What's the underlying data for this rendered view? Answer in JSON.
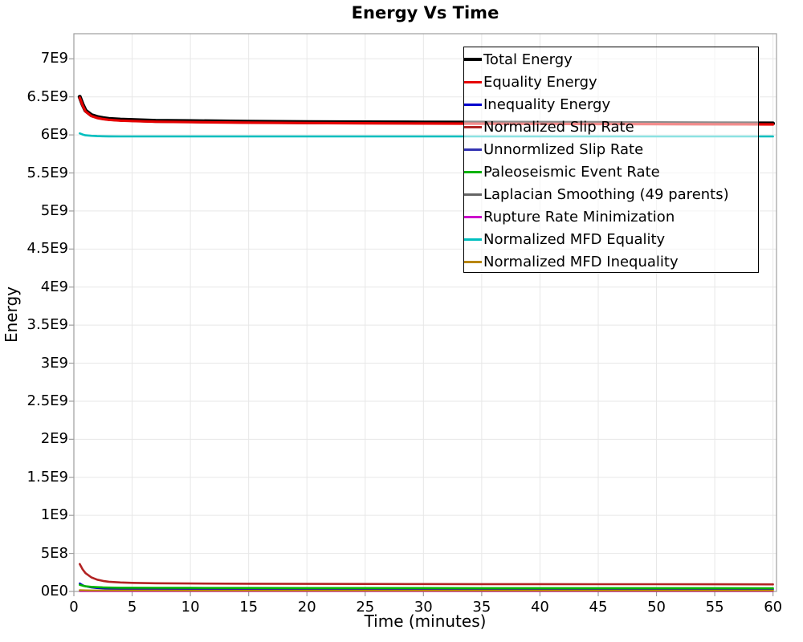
{
  "title": "Energy Vs Time",
  "axes": {
    "x_label": "Time (minutes)",
    "y_label": "Energy"
  },
  "style_colors": {
    "background": "#ffffff",
    "grid": "#e7e7e7",
    "plot_border": "#9e9e9e",
    "text": "#000000",
    "legend_border": "#000000"
  },
  "chart_data": {
    "type": "line",
    "title": "Energy Vs Time",
    "xlabel": "Time (minutes)",
    "ylabel": "Energy",
    "xlim": [
      0,
      60.3
    ],
    "ylim": [
      0,
      7330000000
    ],
    "grid": true,
    "legend_position": "top-right",
    "x_ticks": [
      {
        "value": 0,
        "label": "0"
      },
      {
        "value": 5,
        "label": "5"
      },
      {
        "value": 10,
        "label": "10"
      },
      {
        "value": 15,
        "label": "15"
      },
      {
        "value": 20,
        "label": "20"
      },
      {
        "value": 25,
        "label": "25"
      },
      {
        "value": 30,
        "label": "30"
      },
      {
        "value": 35,
        "label": "35"
      },
      {
        "value": 40,
        "label": "40"
      },
      {
        "value": 45,
        "label": "45"
      },
      {
        "value": 50,
        "label": "50"
      },
      {
        "value": 55,
        "label": "55"
      },
      {
        "value": 60,
        "label": "60"
      }
    ],
    "y_ticks": [
      {
        "value": 0,
        "label": "0E0"
      },
      {
        "value": 500000000,
        "label": "5E8"
      },
      {
        "value": 1000000000,
        "label": "1E9"
      },
      {
        "value": 1500000000,
        "label": "1.5E9"
      },
      {
        "value": 2000000000,
        "label": "2E9"
      },
      {
        "value": 2500000000,
        "label": "2.5E9"
      },
      {
        "value": 3000000000,
        "label": "3E9"
      },
      {
        "value": 3500000000,
        "label": "3.5E9"
      },
      {
        "value": 4000000000,
        "label": "4E9"
      },
      {
        "value": 4500000000,
        "label": "4.5E9"
      },
      {
        "value": 5000000000,
        "label": "5E9"
      },
      {
        "value": 5500000000,
        "label": "5.5E9"
      },
      {
        "value": 6000000000,
        "label": "6E9"
      },
      {
        "value": 6500000000,
        "label": "6.5E9"
      },
      {
        "value": 7000000000,
        "label": "7E9"
      }
    ],
    "x": [
      0.5,
      0.75,
      1,
      1.5,
      2,
      2.5,
      3,
      4,
      5,
      7,
      10,
      15,
      20,
      25,
      30,
      35,
      40,
      45,
      50,
      55,
      60
    ],
    "series": [
      {
        "name": "Total Energy",
        "color": "#000000",
        "width": 5,
        "values": [
          6500000000.0,
          6400000000.0,
          6320000000.0,
          6260000000.0,
          6235000000.0,
          6220000000.0,
          6210000000.0,
          6200000000.0,
          6195000000.0,
          6185000000.0,
          6180000000.0,
          6172000000.0,
          6168000000.0,
          6165000000.0,
          6162000000.0,
          6160000000.0,
          6158000000.0,
          6156000000.0,
          6154000000.0,
          6152000000.0,
          6150000000.0
        ]
      },
      {
        "name": "Equality Energy",
        "color": "#e60000",
        "width": 3.2,
        "values": [
          6488000000.0,
          6388000000.0,
          6308000000.0,
          6248000000.0,
          6223000000.0,
          6208000000.0,
          6198000000.0,
          6188000000.0,
          6183000000.0,
          6173000000.0,
          6168000000.0,
          6160000000.0,
          6156000000.0,
          6153000000.0,
          6150000000.0,
          6148000000.0,
          6146000000.0,
          6144000000.0,
          6142000000.0,
          6140000000.0,
          6138000000.0
        ]
      },
      {
        "name": "Inequality Energy",
        "color": "#0000cd",
        "width": 2.4,
        "values": [
          105000000.0,
          82000000.0,
          68000000.0,
          52000000.0,
          44000000.0,
          40000000.0,
          37000000.0,
          34000000.0,
          32000000.0,
          30000000.0,
          29000000.0,
          28000000.0,
          27500000.0,
          27000000.0,
          27000000.0,
          26500000.0,
          26500000.0,
          26000000.0,
          26000000.0,
          26000000.0,
          25500000.0
        ]
      },
      {
        "name": "Normalized Slip Rate",
        "color": "#b22222",
        "width": 2.6,
        "values": [
          360000000.0,
          290000000.0,
          240000000.0,
          185000000.0,
          155000000.0,
          138000000.0,
          128000000.0,
          118000000.0,
          113000000.0,
          108000000.0,
          104000000.0,
          101000000.0,
          99000000.0,
          98000000.0,
          97000000.0,
          96000000.0,
          95500000.0,
          95000000.0,
          94500000.0,
          94000000.0,
          93000000.0
        ]
      },
      {
        "name": "Unnormlized Slip Rate",
        "color": "#3333b2",
        "width": 2,
        "values": [
          8000000.0,
          7000000.0,
          6500000.0,
          6000000.0,
          5500000.0,
          5300000.0,
          5200000.0,
          5100000.0,
          5000000.0,
          5000000.0,
          4900000.0,
          4900000.0,
          4800000.0,
          4800000.0,
          4800000.0,
          4700000.0,
          4700000.0,
          4700000.0,
          4600000.0,
          4600000.0,
          4600000.0
        ]
      },
      {
        "name": "Paleoseismic Event Rate",
        "color": "#00b200",
        "width": 2.6,
        "values": [
          88000000.0,
          76000000.0,
          68000000.0,
          60000000.0,
          56000000.0,
          53000000.0,
          51000000.0,
          49000000.0,
          48000000.0,
          47000000.0,
          46000000.0,
          45000000.0,
          44500000.0,
          44000000.0,
          44000000.0,
          43500000.0,
          43500000.0,
          43000000.0,
          43000000.0,
          43000000.0,
          42500000.0
        ]
      },
      {
        "name": "Laplacian Smoothing (49 parents)",
        "color": "#646464",
        "width": 2,
        "values": [
          11000000.0,
          10000000.0,
          9500000.0,
          9000000.0,
          9000000.0,
          8800000.0,
          8700000.0,
          8600000.0,
          8500000.0,
          8500000.0,
          8400000.0,
          8400000.0,
          8300000.0,
          8300000.0,
          8200000.0,
          8200000.0,
          8200000.0,
          8100000.0,
          8100000.0,
          8100000.0,
          8000000.0
        ]
      },
      {
        "name": "Rupture Rate Minimization",
        "color": "#cc00cc",
        "width": 2,
        "values": [
          3000000.0,
          2800000.0,
          2600000.0,
          2500000.0,
          2400000.0,
          2300000.0,
          2300000.0,
          2200000.0,
          2200000.0,
          2100000.0,
          2100000.0,
          2100000.0,
          2000000.0,
          2000000.0,
          2000000.0,
          2000000.0,
          2000000.0,
          2000000.0,
          2000000.0,
          2000000.0,
          2000000.0
        ]
      },
      {
        "name": "Normalized MFD Equality",
        "color": "#00bfbf",
        "width": 2.6,
        "values": [
          6020000000.0,
          6005000000.0,
          5995000000.0,
          5988000000.0,
          5984000000.0,
          5982000000.0,
          5981000000.0,
          5980000000.0,
          5980000000.0,
          5980000000.0,
          5980000000.0,
          5980000000.0,
          5980000000.0,
          5980000000.0,
          5980000000.0,
          5980000000.0,
          5980000000.0,
          5980000000.0,
          5980000000.0,
          5980000000.0,
          5980000000.0
        ]
      },
      {
        "name": "Normalized MFD Inequality",
        "color": "#b8860b",
        "width": 2.4,
        "values": [
          16000000.0,
          14500000.0,
          13500000.0,
          13000000.0,
          12800000.0,
          12600000.0,
          12500000.0,
          12400000.0,
          12300000.0,
          12200000.0,
          12100000.0,
          12000000.0,
          12000000.0,
          11900000.0,
          11900000.0,
          11800000.0,
          11800000.0,
          11700000.0,
          11700000.0,
          11600000.0,
          11600000.0
        ]
      }
    ]
  }
}
